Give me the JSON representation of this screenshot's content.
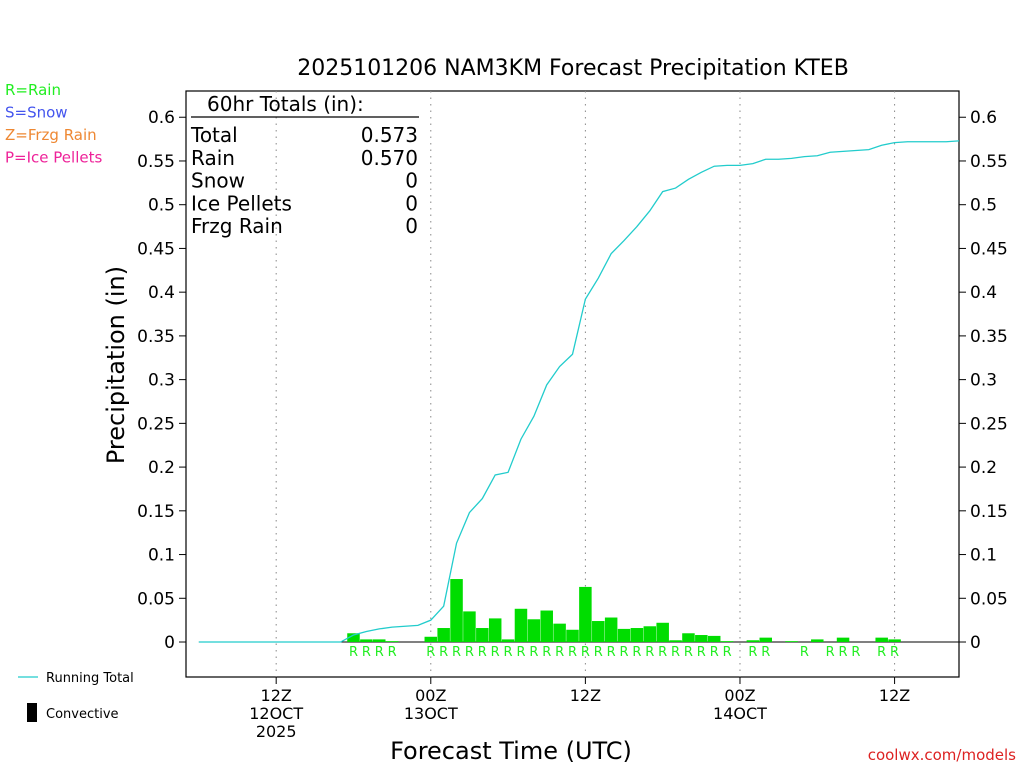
{
  "chart_data": {
    "type": "bar",
    "title": "2025101206 NAM3KM Forecast Precipitation KTEB",
    "xlabel": "Forecast Time (UTC)",
    "ylabel": "Precipitation (in)",
    "ylim": [
      -0.04,
      0.63
    ],
    "xlim_hours": [
      -1,
      59
    ],
    "yticks": [
      "0.6",
      "0.55",
      "0.5",
      "0.45",
      "0.4",
      "0.35",
      "0.3",
      "0.25",
      "0.2",
      "0.15",
      "0.1",
      "0.05",
      "0"
    ],
    "xticks": [
      {
        "hour": 6,
        "lines": [
          "12Z",
          "12OCT",
          "2025"
        ]
      },
      {
        "hour": 18,
        "lines": [
          "00Z",
          "13OCT"
        ]
      },
      {
        "hour": 30,
        "lines": [
          "12Z"
        ]
      },
      {
        "hour": 42,
        "lines": [
          "00Z",
          "14OCT"
        ]
      },
      {
        "hour": 54,
        "lines": [
          "12Z"
        ]
      }
    ],
    "legend": {
      "ptype": [
        {
          "label": "R=Rain",
          "color": "#22ee22"
        },
        {
          "label": "S=Snow",
          "color": "#4455ee"
        },
        {
          "label": "Z=Frzg Rain",
          "color": "#ee8833"
        },
        {
          "label": "P=Ice Pellets",
          "color": "#ee2299"
        }
      ],
      "running_total": "Running Total",
      "convective": "Convective"
    },
    "totals": {
      "header": "60hr Totals (in):",
      "rows": [
        {
          "label": "Total",
          "value": "0.573"
        },
        {
          "label": "Rain",
          "value": "0.570"
        },
        {
          "label": "Snow",
          "value": "0"
        },
        {
          "label": "Ice Pellets",
          "value": "0"
        },
        {
          "label": "Frzg Rain",
          "value": "0"
        }
      ]
    },
    "series": [
      {
        "name": "Hourly Precipitation",
        "type": "bar",
        "color": "#00dd00",
        "hours": [
          12,
          13,
          14,
          15,
          18,
          19,
          20,
          21,
          22,
          23,
          24,
          25,
          26,
          27,
          28,
          29,
          30,
          31,
          32,
          33,
          34,
          35,
          36,
          37,
          38,
          39,
          40,
          41,
          43,
          44,
          46,
          48,
          50,
          53,
          54
        ],
        "values": [
          0.01,
          0.003,
          0.003,
          0.001,
          0.006,
          0.016,
          0.072,
          0.035,
          0.016,
          0.027,
          0.003,
          0.038,
          0.026,
          0.036,
          0.021,
          0.014,
          0.063,
          0.024,
          0.028,
          0.015,
          0.016,
          0.018,
          0.022,
          0.002,
          0.01,
          0.008,
          0.007,
          0.001,
          0.002,
          0.005,
          0.001,
          0.003,
          0.005,
          0.005,
          0.003
        ]
      },
      {
        "name": "Running Total",
        "type": "line",
        "color": "#22cccc",
        "hours": [
          0,
          11,
          12,
          13,
          14,
          15,
          16,
          17,
          18,
          19,
          20,
          21,
          22,
          23,
          24,
          25,
          26,
          27,
          28,
          29,
          30,
          31,
          32,
          33,
          34,
          35,
          36,
          37,
          38,
          39,
          40,
          41,
          42,
          43,
          44,
          45,
          46,
          47,
          48,
          49,
          50,
          51,
          52,
          53,
          54,
          55,
          56,
          57,
          58,
          59
        ],
        "values": [
          0,
          0,
          0.008,
          0.012,
          0.015,
          0.017,
          0.018,
          0.019,
          0.025,
          0.041,
          0.113,
          0.148,
          0.164,
          0.191,
          0.194,
          0.232,
          0.258,
          0.294,
          0.315,
          0.329,
          0.392,
          0.416,
          0.444,
          0.459,
          0.475,
          0.493,
          0.515,
          0.519,
          0.529,
          0.537,
          0.544,
          0.545,
          0.545,
          0.547,
          0.552,
          0.552,
          0.553,
          0.555,
          0.556,
          0.56,
          0.561,
          0.562,
          0.563,
          0.568,
          0.571,
          0.572,
          0.572,
          0.572,
          0.572,
          0.573
        ]
      }
    ],
    "ptype_markers": {
      "label": "R",
      "hours": [
        12,
        13,
        14,
        15,
        18,
        19,
        20,
        21,
        22,
        23,
        24,
        25,
        26,
        27,
        28,
        29,
        30,
        31,
        32,
        33,
        34,
        35,
        36,
        37,
        38,
        39,
        40,
        41,
        43,
        44,
        47,
        49,
        50,
        51,
        53,
        54
      ]
    },
    "credit": "coolwx.com/models"
  }
}
